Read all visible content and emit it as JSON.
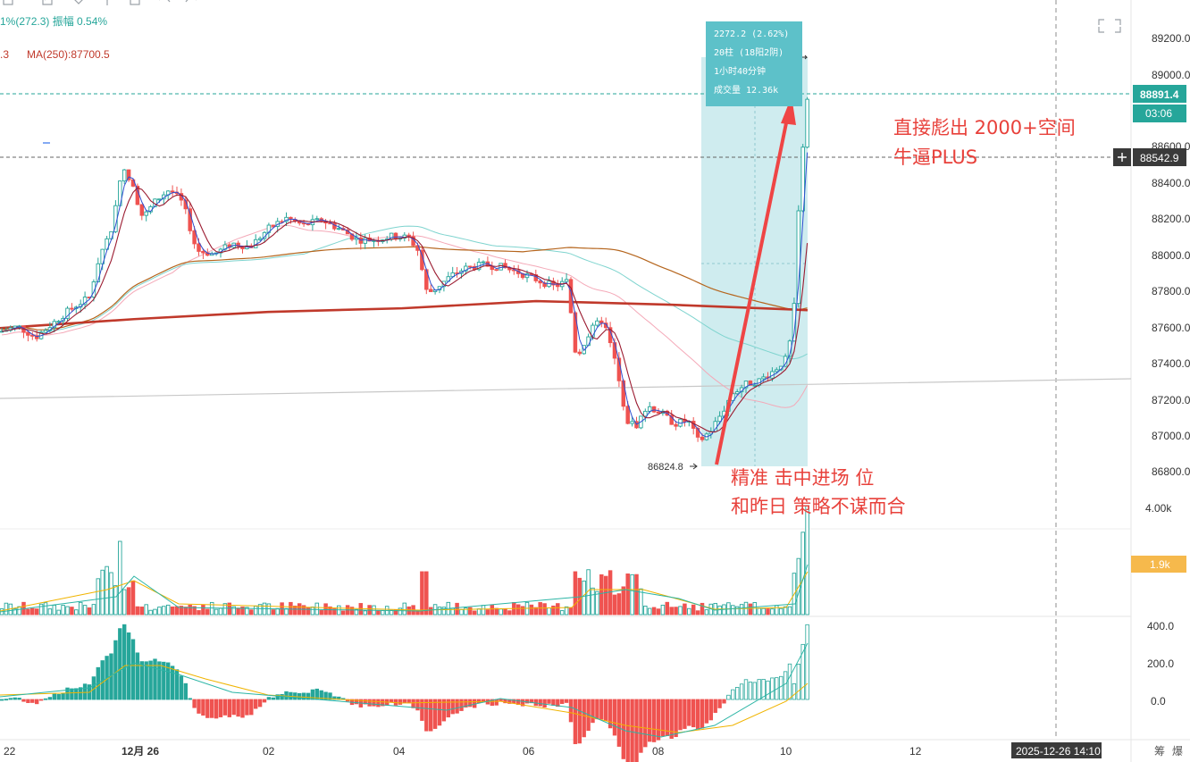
{
  "header": {
    "legend_line1": "1%(272.3) 振幅 0.54%",
    "legend_line2_prefix": ".3",
    "legend_line2": "MA(250):87700.5"
  },
  "toolbar": {
    "icons": [
      "square-icon",
      "edit-icon",
      "tag-icon",
      "fork-icon",
      "undo-icon",
      "redo-icon"
    ]
  },
  "price_axis": {
    "ticks": [
      "89200.0",
      "89000.0",
      "88600.0",
      "88400.0",
      "88200.0",
      "88000.0",
      "87800.0",
      "87600.0",
      "87400.0",
      "87200.0",
      "87000.0",
      "86800.0"
    ],
    "current_price": "88891.4",
    "countdown": "03:06",
    "crosshair_price": "88542.9"
  },
  "volume_axis": {
    "ticks": [
      "4.00k"
    ],
    "current_volume": "1.9k"
  },
  "macd_axis": {
    "ticks": [
      "400.0",
      "200.0",
      "0.0"
    ]
  },
  "time_axis": {
    "ticks": [
      "22",
      "12月 26",
      "02",
      "04",
      "06",
      "08",
      "10",
      "12"
    ],
    "crosshair_time": "2025-12-26 14:10",
    "corner_labels": [
      "筹",
      "爆"
    ]
  },
  "measure_tooltip": {
    "lines": [
      "2272.2 (2.62%)",
      "20柱 (18阳2阴)",
      "1小时40分钟",
      "成交量 12.36k"
    ]
  },
  "low_marker": "86824.8",
  "annotations": {
    "top": [
      "直接彪出 2000+空间",
      "牛逼PLUS"
    ],
    "bottom": [
      "精准 击中进场 位",
      "和昨日 策略不谋而合"
    ]
  },
  "colors": {
    "up": "#26a69a",
    "down": "#ef5350",
    "ma250": "#c0392b",
    "annotation": "#e8413b",
    "highlight": "#bfe6ea",
    "tooltip": "#5dc1c9",
    "price_label": "#26a69a"
  },
  "chart_data": {
    "type": "candlestick",
    "price_range": [
      86700,
      89300
    ],
    "x_ticks": [
      "22",
      "12月 26",
      "02",
      "04",
      "06",
      "08",
      "10",
      "12"
    ],
    "key_points": [
      {
        "label": "22",
        "close": 87560
      },
      {
        "label": "12月 26",
        "close": 88400
      },
      {
        "label": "02",
        "close": 88100
      },
      {
        "label": "04",
        "close": 88060
      },
      {
        "label": "06",
        "close": 87880
      },
      {
        "label": "08",
        "close": 87000
      },
      {
        "label": "low",
        "close": 86824.8
      },
      {
        "label": "10",
        "close": 88891.4
      }
    ],
    "ma250": 87700.5,
    "current_price": 88891.4,
    "measure": {
      "change": 2272.2,
      "pct": 2.62,
      "bars": 20,
      "up_bars": 18,
      "down_bars": 2,
      "duration": "1小时40分钟",
      "volume": "12.36k"
    },
    "volume_axis_max": "4.00k",
    "macd_ticks": [
      400,
      200,
      0
    ]
  }
}
